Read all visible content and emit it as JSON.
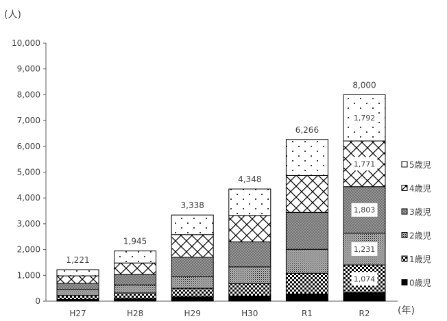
{
  "chart_data": {
    "type": "bar",
    "stacked": true,
    "y_unit": "(人)",
    "x_unit": "(年)",
    "ylim": [
      0,
      10000
    ],
    "y_ticks": [
      "0",
      "1,000",
      "2,000",
      "3,000",
      "4,000",
      "5,000",
      "6,000",
      "7,000",
      "8,000",
      "9,000",
      "10,000"
    ],
    "categories": [
      "H27",
      "H28",
      "H29",
      "H30",
      "R1",
      "R2"
    ],
    "totals": [
      "1,221",
      "1,945",
      "3,338",
      "4,348",
      "6,266",
      "8,000"
    ],
    "legend_position": "right",
    "series": [
      {
        "name": "0歳児",
        "pattern": "solid",
        "values": [
          70,
          100,
          170,
          200,
          280,
          329
        ]
      },
      {
        "name": "1歳児",
        "pattern": "check",
        "values": [
          150,
          220,
          330,
          480,
          800,
          1074
        ]
      },
      {
        "name": "2歳児",
        "pattern": "dots-dense",
        "values": [
          220,
          310,
          450,
          650,
          930,
          1231
        ]
      },
      {
        "name": "3歳児",
        "pattern": "dark-dots",
        "values": [
          250,
          410,
          750,
          970,
          1430,
          1803
        ]
      },
      {
        "name": "4歳児",
        "pattern": "diamond",
        "values": [
          290,
          440,
          880,
          1020,
          1430,
          1771
        ]
      },
      {
        "name": "5歳児",
        "pattern": "sparse-dots",
        "values": [
          241,
          465,
          758,
          1028,
          1396,
          1792
        ]
      }
    ],
    "data_labels": [
      {
        "category": "R2",
        "series": "1歳児",
        "text": "1,074"
      },
      {
        "category": "R2",
        "series": "2歳児",
        "text": "1,231"
      },
      {
        "category": "R2",
        "series": "3歳児",
        "text": "1,803"
      },
      {
        "category": "R2",
        "series": "4歳児",
        "text": "1,771"
      },
      {
        "category": "R2",
        "series": "5歳児",
        "text": "1,792"
      }
    ]
  }
}
